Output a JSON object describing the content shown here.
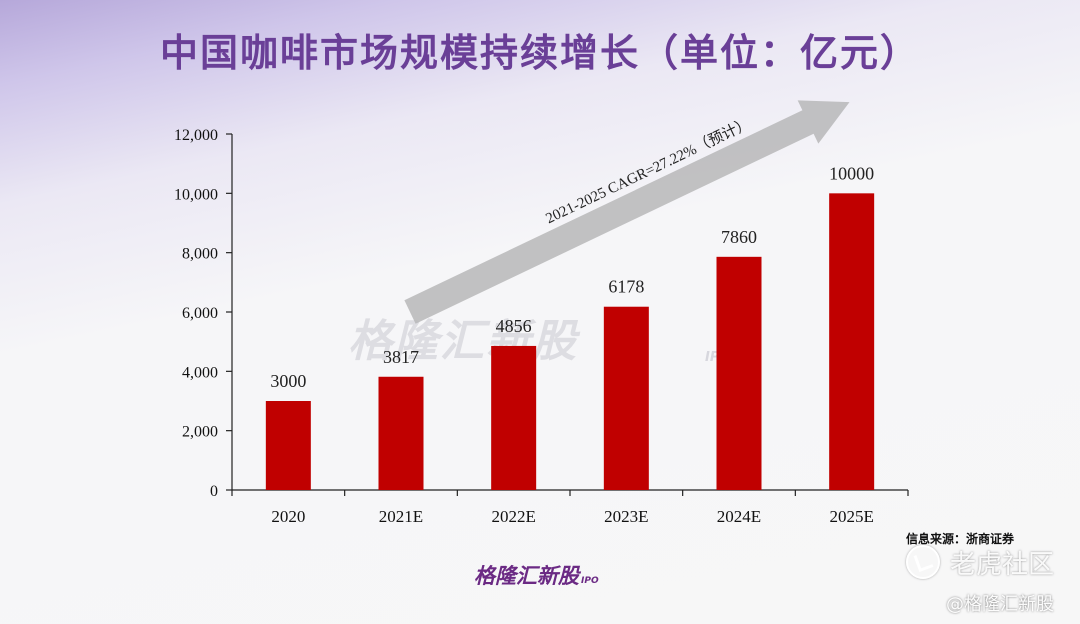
{
  "title": "中国咖啡市场规模持续增长（单位：亿元）",
  "source": "信息来源：浙商证券",
  "brand": {
    "name": "格隆汇新股",
    "tag": "IPO"
  },
  "watermark": {
    "center_text": "格隆汇新股",
    "center_tag": "IPO",
    "community": "老虎社区",
    "handle": "@格隆汇新股"
  },
  "chart_data": {
    "type": "bar",
    "title": "中国咖啡市场规模持续增长（单位：亿元）",
    "categories": [
      "2020",
      "2021E",
      "2022E",
      "2023E",
      "2024E",
      "2025E"
    ],
    "values": [
      3000,
      3817,
      4856,
      6178,
      7860,
      10000
    ],
    "data_labels": [
      "3000",
      "3817",
      "4856",
      "6178",
      "7860",
      "10000"
    ],
    "yticks": [
      "0",
      "2,000",
      "4,000",
      "6,000",
      "8,000",
      "10,000",
      "12,000"
    ],
    "ylim": [
      0,
      12000
    ],
    "xlabel": "",
    "ylabel": "",
    "grid": false,
    "bar_color": "#c00000",
    "annotation": "2021-2025 CAGR=27.22%（预计）"
  }
}
